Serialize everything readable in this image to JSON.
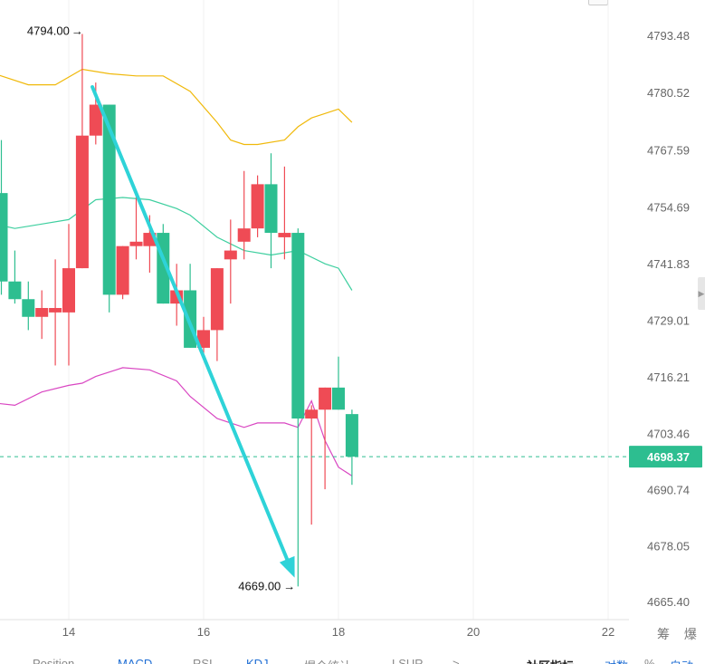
{
  "chart_data": {
    "type": "candlestick",
    "y_ticks": [
      "4793.48",
      "4780.52",
      "4767.59",
      "4754.69",
      "4741.83",
      "4729.01",
      "4716.21",
      "4703.46",
      "4690.74",
      "4678.05",
      "4665.40"
    ],
    "x_ticks": [
      "14",
      "16",
      "18",
      "20",
      "22"
    ],
    "ylim": [
      4665.4,
      4793.48
    ],
    "current_price": "4698.37",
    "high_marker": "4794.00",
    "low_marker": "4669.00",
    "colors": {
      "up": "#ef4b55",
      "down": "#2dbe90",
      "boll_upper": "#f0b90b",
      "boll_mid": "#3ecf9f",
      "boll_lower": "#d946c2",
      "arrow": "#2ed3d8"
    },
    "candles": [
      {
        "t": 13.0,
        "o": 4758.0,
        "c": 4738.0,
        "h": 4770.0,
        "l": 4735.0
      },
      {
        "t": 13.2,
        "o": 4738.0,
        "c": 4734.0,
        "h": 4745.0,
        "l": 4733.0
      },
      {
        "t": 13.4,
        "o": 4734.0,
        "c": 4730.0,
        "h": 4738.0,
        "l": 4727.0
      },
      {
        "t": 13.6,
        "o": 4730.0,
        "c": 4732.0,
        "h": 4736.0,
        "l": 4725.0
      },
      {
        "t": 13.8,
        "o": 4731.0,
        "c": 4732.0,
        "h": 4743.0,
        "l": 4719.0
      },
      {
        "t": 14.0,
        "o": 4731.0,
        "c": 4741.0,
        "h": 4751.0,
        "l": 4719.0
      },
      {
        "t": 14.2,
        "o": 4741.0,
        "c": 4771.0,
        "h": 4794.0,
        "l": 4741.0
      },
      {
        "t": 14.4,
        "o": 4771.0,
        "c": 4778.0,
        "h": 4783.0,
        "l": 4769.0
      },
      {
        "t": 14.6,
        "o": 4778.0,
        "c": 4735.0,
        "h": 4778.0,
        "l": 4731.0
      },
      {
        "t": 14.8,
        "o": 4735.0,
        "c": 4746.0,
        "h": 4746.0,
        "l": 4734.0
      },
      {
        "t": 15.0,
        "o": 4746.0,
        "c": 4747.0,
        "h": 4758.0,
        "l": 4743.0
      },
      {
        "t": 15.2,
        "o": 4746.0,
        "c": 4749.0,
        "h": 4753.0,
        "l": 4740.0
      },
      {
        "t": 15.4,
        "o": 4749.0,
        "c": 4733.0,
        "h": 4751.0,
        "l": 4733.0
      },
      {
        "t": 15.6,
        "o": 4733.0,
        "c": 4736.0,
        "h": 4742.0,
        "l": 4728.0
      },
      {
        "t": 15.8,
        "o": 4736.0,
        "c": 4723.0,
        "h": 4742.0,
        "l": 4723.0
      },
      {
        "t": 16.0,
        "o": 4723.0,
        "c": 4727.0,
        "h": 4730.0,
        "l": 4721.0
      },
      {
        "t": 16.2,
        "o": 4727.0,
        "c": 4741.0,
        "h": 4741.0,
        "l": 4720.0
      },
      {
        "t": 16.4,
        "o": 4743.0,
        "c": 4745.0,
        "h": 4752.0,
        "l": 4733.0
      },
      {
        "t": 16.6,
        "o": 4747.0,
        "c": 4750.0,
        "h": 4763.0,
        "l": 4743.0
      },
      {
        "t": 16.8,
        "o": 4750.0,
        "c": 4760.0,
        "h": 4762.0,
        "l": 4748.0
      },
      {
        "t": 17.0,
        "o": 4760.0,
        "c": 4749.0,
        "h": 4767.0,
        "l": 4741.0
      },
      {
        "t": 17.2,
        "o": 4748.0,
        "c": 4749.0,
        "h": 4764.0,
        "l": 4743.0
      },
      {
        "t": 17.4,
        "o": 4749.0,
        "c": 4707.0,
        "h": 4750.0,
        "l": 4669.0
      },
      {
        "t": 17.6,
        "o": 4707.0,
        "c": 4709.0,
        "h": 4710.0,
        "l": 4683.0
      },
      {
        "t": 17.8,
        "o": 4709.0,
        "c": 4714.0,
        "h": 4714.0,
        "l": 4691.0
      },
      {
        "t": 18.0,
        "o": 4714.0,
        "c": 4709.0,
        "h": 4721.0,
        "l": 4709.0
      },
      {
        "t": 18.2,
        "o": 4708.0,
        "c": 4698.37,
        "h": 4709.0,
        "l": 4692.0
      }
    ],
    "boll_upper": [
      [
        12.6,
        4785.5
      ],
      [
        12.9,
        4785.0
      ],
      [
        13.4,
        4782.5
      ],
      [
        13.8,
        4782.5
      ],
      [
        14.2,
        4786.0
      ],
      [
        14.6,
        4785.0
      ],
      [
        15.0,
        4784.5
      ],
      [
        15.4,
        4784.5
      ],
      [
        15.8,
        4781.0
      ],
      [
        16.2,
        4774.0
      ],
      [
        16.4,
        4770.0
      ],
      [
        16.6,
        4769.0
      ],
      [
        16.8,
        4769.0
      ],
      [
        17.2,
        4770.0
      ],
      [
        17.4,
        4773.0
      ],
      [
        17.6,
        4775.0
      ],
      [
        17.8,
        4776.0
      ],
      [
        18.0,
        4777.0
      ],
      [
        18.2,
        4774.0
      ]
    ],
    "boll_mid": [
      [
        12.6,
        4752.0
      ],
      [
        12.9,
        4751.0
      ],
      [
        13.2,
        4750.0
      ],
      [
        13.6,
        4751.0
      ],
      [
        14.0,
        4752.0
      ],
      [
        14.4,
        4756.5
      ],
      [
        14.8,
        4757.0
      ],
      [
        15.2,
        4756.5
      ],
      [
        15.6,
        4754.5
      ],
      [
        15.8,
        4753.0
      ],
      [
        16.2,
        4748.0
      ],
      [
        16.6,
        4745.0
      ],
      [
        17.0,
        4744.0
      ],
      [
        17.4,
        4745.0
      ],
      [
        17.8,
        4742.0
      ],
      [
        18.0,
        4741.0
      ],
      [
        18.2,
        4736.0
      ]
    ],
    "boll_lower": [
      [
        12.6,
        4711.0
      ],
      [
        12.9,
        4710.5
      ],
      [
        13.2,
        4710.0
      ],
      [
        13.6,
        4713.0
      ],
      [
        14.0,
        4714.5
      ],
      [
        14.2,
        4715.0
      ],
      [
        14.4,
        4716.5
      ],
      [
        14.8,
        4718.5
      ],
      [
        15.2,
        4718.0
      ],
      [
        15.6,
        4715.5
      ],
      [
        15.8,
        4712.0
      ],
      [
        16.2,
        4707.0
      ],
      [
        16.6,
        4705.0
      ],
      [
        16.8,
        4706.0
      ],
      [
        17.2,
        4706.0
      ],
      [
        17.4,
        4705.0
      ],
      [
        17.6,
        4711.0
      ],
      [
        17.8,
        4702.0
      ],
      [
        18.0,
        4696.0
      ],
      [
        18.2,
        4694.0
      ]
    ],
    "trend_arrow": {
      "from": [
        14.35,
        4782.0
      ],
      "to": [
        17.35,
        4671.0
      ]
    }
  },
  "tabs": [
    "Position",
    "MACD",
    "RSI",
    "KDJ",
    "爆仓统计",
    "LSUR",
    ">",
    "社区指标",
    "对数",
    "%",
    "自动"
  ],
  "side_text": "筹 爆"
}
